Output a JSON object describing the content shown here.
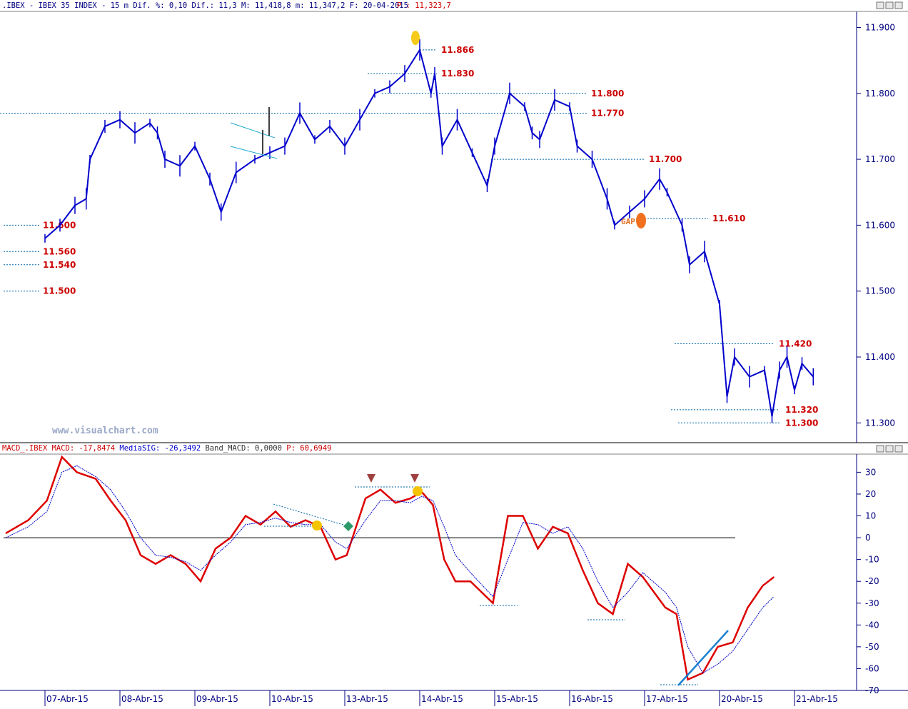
{
  "header": {
    "title": ".IBEX - IBEX 35 INDEX -  15 m Dif. %: 0,10 Dif.: 11,3 M: 11,418,8 m: 11,347,2 F: 20-04-2015",
    "last_price_label": "P : 11,323,7",
    "title_color": "#000080",
    "price_color": "#cc0000"
  },
  "watermark": "www.visualchart.com",
  "macd_header": {
    "name": "MACD_.IBEX",
    "parts": [
      {
        "text": "MACD: -17,8474",
        "color": "#cc0000"
      },
      {
        "text": "MediaSIG: -26,3492",
        "color": "#0000cc"
      },
      {
        "text": "Band_MACD: 0,0000",
        "color": "#333333"
      },
      {
        "text": "P: 60,6949",
        "color": "#cc0000"
      }
    ]
  },
  "gap_label": "GAP",
  "window_buttons": [
    "minimize",
    "restore",
    "close"
  ],
  "chart_data": [
    {
      "type": "line",
      "title": "IBEX 35 INDEX 15 m",
      "x_categories": [
        "07-Abr-15",
        "08-Abr-15",
        "09-Abr-15",
        "10-Abr-15",
        "13-Abr-15",
        "14-Abr-15",
        "15-Abr-15",
        "16-Abr-15",
        "17-Abr-15",
        "20-Abr-15",
        "21-Abr-15"
      ],
      "y_ticks": [
        "11.900",
        "11.800",
        "11.700",
        "11.600",
        "11.500",
        "11.400",
        "11.300"
      ],
      "ylim": [
        11270,
        11920
      ],
      "series": [
        {
          "color": "#0000cc",
          "points": [
            [
              0,
              11580
            ],
            [
              0.2,
              11600
            ],
            [
              0.4,
              11630
            ],
            [
              0.55,
              11640
            ],
            [
              0.6,
              11700
            ],
            [
              0.8,
              11750
            ],
            [
              1.0,
              11760
            ],
            [
              1.2,
              11740
            ],
            [
              1.4,
              11755
            ],
            [
              1.5,
              11740
            ],
            [
              1.6,
              11700
            ],
            [
              1.8,
              11690
            ],
            [
              2.0,
              11720
            ],
            [
              2.2,
              11670
            ],
            [
              2.35,
              11620
            ],
            [
              2.55,
              11680
            ],
            [
              2.8,
              11700
            ],
            [
              3.0,
              11710
            ],
            [
              3.2,
              11720
            ],
            [
              3.4,
              11770
            ],
            [
              3.6,
              11730
            ],
            [
              3.8,
              11750
            ],
            [
              4.0,
              11720
            ],
            [
              4.2,
              11760
            ],
            [
              4.4,
              11800
            ],
            [
              4.6,
              11810
            ],
            [
              4.8,
              11830
            ],
            [
              5.0,
              11866
            ],
            [
              5.15,
              11800
            ],
            [
              5.2,
              11830
            ],
            [
              5.3,
              11720
            ],
            [
              5.5,
              11760
            ],
            [
              5.7,
              11710
            ],
            [
              5.9,
              11660
            ],
            [
              6.0,
              11720
            ],
            [
              6.2,
              11800
            ],
            [
              6.4,
              11780
            ],
            [
              6.5,
              11740
            ],
            [
              6.6,
              11730
            ],
            [
              6.8,
              11790
            ],
            [
              7.0,
              11780
            ],
            [
              7.1,
              11720
            ],
            [
              7.3,
              11700
            ],
            [
              7.5,
              11640
            ],
            [
              7.6,
              11600
            ],
            [
              7.8,
              11620
            ],
            [
              8.0,
              11640
            ],
            [
              8.2,
              11670
            ],
            [
              8.3,
              11650
            ],
            [
              8.5,
              11600
            ],
            [
              8.6,
              11540
            ],
            [
              8.8,
              11560
            ],
            [
              9.0,
              11480
            ],
            [
              9.1,
              11340
            ],
            [
              9.2,
              11400
            ],
            [
              9.4,
              11370
            ],
            [
              9.6,
              11380
            ],
            [
              9.7,
              11310
            ],
            [
              9.8,
              11380
            ],
            [
              9.9,
              11400
            ],
            [
              10.0,
              11350
            ],
            [
              10.1,
              11390
            ],
            [
              10.25,
              11370
            ]
          ]
        }
      ],
      "levels": [
        {
          "label": "11.866",
          "value": 11866
        },
        {
          "label": "11.830",
          "value": 11830
        },
        {
          "label": "11.800",
          "value": 11800
        },
        {
          "label": "11.770",
          "value": 11770
        },
        {
          "label": "11.700",
          "value": 11700
        },
        {
          "label": "11.610",
          "value": 11610
        },
        {
          "label": "11.600",
          "value": 11600
        },
        {
          "label": "11.560",
          "value": 11560
        },
        {
          "label": "11.540",
          "value": 11540
        },
        {
          "label": "11.500",
          "value": 11500
        },
        {
          "label": "11.420",
          "value": 11420
        },
        {
          "label": "11.320",
          "value": 11320
        },
        {
          "label": "11.300",
          "value": 11300
        }
      ]
    },
    {
      "type": "line",
      "title": "MACD",
      "y_ticks": [
        "30",
        "20",
        "10",
        "0",
        "-10",
        "-20",
        "-30",
        "-40",
        "-50",
        "-60",
        "-70"
      ],
      "ylim": [
        -70,
        37
      ],
      "series": [
        {
          "name": "MACD",
          "color": "#dd0000",
          "points": [
            [
              0,
              2
            ],
            [
              0.3,
              8
            ],
            [
              0.55,
              17
            ],
            [
              0.75,
              37
            ],
            [
              0.95,
              30
            ],
            [
              1.2,
              27
            ],
            [
              1.4,
              17
            ],
            [
              1.6,
              8
            ],
            [
              1.8,
              -8
            ],
            [
              2.0,
              -12
            ],
            [
              2.2,
              -8
            ],
            [
              2.4,
              -12
            ],
            [
              2.6,
              -20
            ],
            [
              2.8,
              -5
            ],
            [
              3.0,
              0
            ],
            [
              3.2,
              10
            ],
            [
              3.4,
              6
            ],
            [
              3.6,
              12
            ],
            [
              3.8,
              5
            ],
            [
              4.0,
              8
            ],
            [
              4.2,
              5
            ],
            [
              4.4,
              -10
            ],
            [
              4.55,
              -8
            ],
            [
              4.8,
              18
            ],
            [
              5.0,
              22
            ],
            [
              5.2,
              16
            ],
            [
              5.4,
              18
            ],
            [
              5.55,
              21
            ],
            [
              5.7,
              15
            ],
            [
              5.85,
              -10
            ],
            [
              6.0,
              -20
            ],
            [
              6.2,
              -20
            ],
            [
              6.5,
              -30
            ],
            [
              6.7,
              10
            ],
            [
              6.9,
              10
            ],
            [
              7.1,
              -5
            ],
            [
              7.3,
              5
            ],
            [
              7.5,
              2
            ],
            [
              7.7,
              -15
            ],
            [
              7.9,
              -30
            ],
            [
              8.1,
              -35
            ],
            [
              8.3,
              -12
            ],
            [
              8.5,
              -18
            ],
            [
              8.8,
              -32
            ],
            [
              8.95,
              -35
            ],
            [
              9.1,
              -65
            ],
            [
              9.3,
              -62
            ],
            [
              9.5,
              -50
            ],
            [
              9.7,
              -48
            ],
            [
              9.9,
              -32
            ],
            [
              10.1,
              -22
            ],
            [
              10.25,
              -18
            ]
          ]
        },
        {
          "name": "MediaSIG",
          "color": "#0000cc",
          "points": [
            [
              0,
              0
            ],
            [
              0.3,
              5
            ],
            [
              0.55,
              12
            ],
            [
              0.75,
              30
            ],
            [
              0.95,
              33
            ],
            [
              1.2,
              28
            ],
            [
              1.4,
              22
            ],
            [
              1.6,
              12
            ],
            [
              1.8,
              0
            ],
            [
              2.0,
              -8
            ],
            [
              2.2,
              -9
            ],
            [
              2.4,
              -11
            ],
            [
              2.6,
              -15
            ],
            [
              2.8,
              -8
            ],
            [
              3.0,
              -2
            ],
            [
              3.2,
              6
            ],
            [
              3.4,
              7
            ],
            [
              3.6,
              9
            ],
            [
              3.8,
              7
            ],
            [
              4.0,
              6
            ],
            [
              4.2,
              6
            ],
            [
              4.4,
              -2
            ],
            [
              4.55,
              -5
            ],
            [
              4.8,
              8
            ],
            [
              5.0,
              17
            ],
            [
              5.2,
              17
            ],
            [
              5.4,
              16
            ],
            [
              5.55,
              19
            ],
            [
              5.7,
              17
            ],
            [
              5.85,
              5
            ],
            [
              6.0,
              -8
            ],
            [
              6.2,
              -16
            ],
            [
              6.5,
              -27
            ],
            [
              6.7,
              -10
            ],
            [
              6.9,
              7
            ],
            [
              7.1,
              6
            ],
            [
              7.3,
              2
            ],
            [
              7.5,
              5
            ],
            [
              7.7,
              -5
            ],
            [
              7.9,
              -20
            ],
            [
              8.1,
              -32
            ],
            [
              8.3,
              -25
            ],
            [
              8.5,
              -16
            ],
            [
              8.8,
              -25
            ],
            [
              8.95,
              -32
            ],
            [
              9.1,
              -50
            ],
            [
              9.3,
              -62
            ],
            [
              9.5,
              -58
            ],
            [
              9.7,
              -52
            ],
            [
              9.9,
              -42
            ],
            [
              10.1,
              -32
            ],
            [
              10.25,
              -27
            ]
          ]
        }
      ]
    }
  ]
}
